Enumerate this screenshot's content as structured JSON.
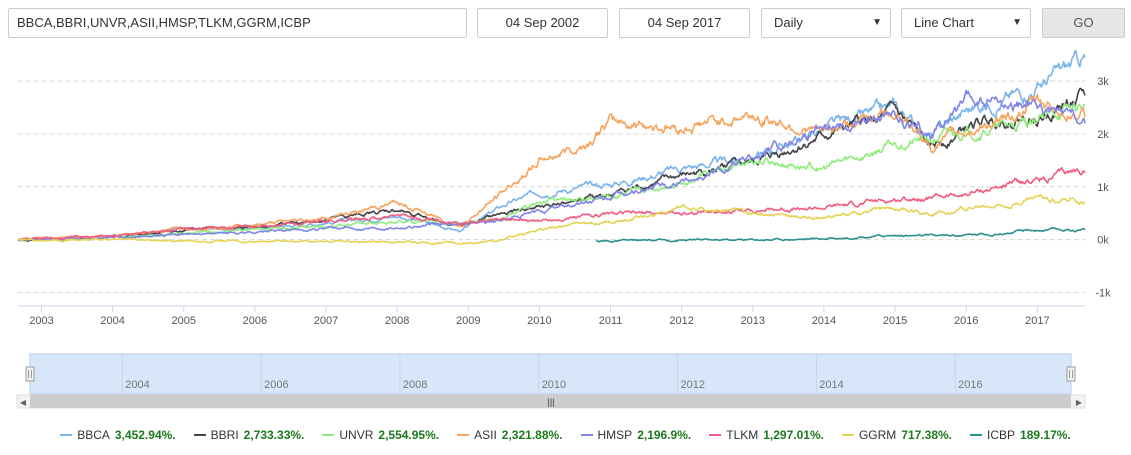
{
  "toolbar": {
    "symbols": "BBCA,BBRI,UNVR,ASII,HMSP,TLKM,GGRM,ICBP",
    "start_date": "04 Sep 2002",
    "end_date": "04 Sep 2017",
    "interval": "Daily",
    "chart_type": "Line Chart",
    "go_label": "GO"
  },
  "chart_data": {
    "type": "line",
    "x_type": "year",
    "xlim": [
      2002.67,
      2017.67
    ],
    "ylim": [
      -1200,
      3400
    ],
    "y_ticks": [
      -1000,
      0,
      1000,
      2000,
      3000
    ],
    "y_tick_labels": [
      "-1k",
      "0k",
      "1k",
      "2k",
      "3k"
    ],
    "x_ticks": [
      "2003",
      "2004",
      "2005",
      "2006",
      "2007",
      "2008",
      "2009",
      "2010",
      "2011",
      "2012",
      "2013",
      "2014",
      "2015",
      "2016",
      "2017"
    ],
    "grid": true,
    "legend_position": "bottom",
    "series": [
      {
        "name": "BBCA",
        "color": "#7cb5ec",
        "label_value": "3,452.94%.",
        "x": [
          2002.67,
          2004,
          2005,
          2006,
          2007,
          2008,
          2008.9,
          2009.5,
          2010,
          2011,
          2012,
          2013,
          2014,
          2015,
          2015.5,
          2016,
          2016.5,
          2017,
          2017.67
        ],
        "y": [
          0,
          50,
          200,
          220,
          320,
          450,
          160,
          650,
          900,
          1050,
          1350,
          1550,
          2100,
          2500,
          1950,
          2450,
          2650,
          2900,
          3450
        ]
      },
      {
        "name": "BBRI",
        "color": "#434348",
        "label_value": "2,733.33%.",
        "x": [
          2002.67,
          2004,
          2005,
          2006,
          2007,
          2008,
          2008.9,
          2009.5,
          2010,
          2011,
          2012,
          2013,
          2014,
          2015,
          2015.5,
          2016,
          2016.5,
          2017,
          2017.67
        ],
        "y": [
          0,
          40,
          190,
          220,
          380,
          560,
          250,
          500,
          620,
          850,
          1200,
          1450,
          1950,
          2400,
          1750,
          2100,
          2300,
          2300,
          2730
        ]
      },
      {
        "name": "UNVR",
        "color": "#90ed7d",
        "label_value": "2,554.95%.",
        "x": [
          2002.67,
          2004,
          2005,
          2006,
          2007,
          2008,
          2008.9,
          2009.5,
          2010,
          2011,
          2012,
          2013,
          2014,
          2015,
          2015.5,
          2016,
          2016.5,
          2017,
          2017.67
        ],
        "y": [
          0,
          30,
          120,
          200,
          250,
          330,
          330,
          400,
          700,
          800,
          1100,
          1500,
          1350,
          1800,
          1900,
          2050,
          2100,
          2300,
          2550
        ]
      },
      {
        "name": "ASII",
        "color": "#f7a35c",
        "label_value": "2,321.88%.",
        "x": [
          2002.67,
          2004,
          2005,
          2006,
          2007,
          2008,
          2008.9,
          2009.5,
          2010,
          2010.7,
          2011,
          2012,
          2013,
          2014,
          2015,
          2015.5,
          2016,
          2016.5,
          2017,
          2017.67
        ],
        "y": [
          0,
          60,
          220,
          280,
          400,
          700,
          250,
          900,
          1500,
          1850,
          2250,
          2100,
          2350,
          2000,
          2500,
          1750,
          2050,
          2250,
          2600,
          2320
        ]
      },
      {
        "name": "HMSP",
        "color": "#8085e9",
        "label_value": "2,196.9%.",
        "x": [
          2002.67,
          2004,
          2005,
          2006,
          2007,
          2008,
          2008.9,
          2009.5,
          2010,
          2011,
          2012,
          2013,
          2014,
          2015,
          2015.5,
          2016,
          2016.5,
          2017,
          2017.67
        ],
        "y": [
          0,
          30,
          100,
          150,
          200,
          250,
          300,
          380,
          520,
          800,
          1100,
          1500,
          2200,
          2300,
          2000,
          2600,
          2550,
          2500,
          2200
        ]
      },
      {
        "name": "TLKM",
        "color": "#f15c80",
        "label_value": "1,297.01%.",
        "x": [
          2002.67,
          2004,
          2005,
          2006,
          2007,
          2008,
          2008.9,
          2009.5,
          2010,
          2011,
          2012,
          2013,
          2014,
          2015,
          2015.5,
          2016,
          2016.5,
          2017,
          2017.67
        ],
        "y": [
          0,
          70,
          200,
          240,
          350,
          450,
          300,
          400,
          350,
          480,
          500,
          550,
          600,
          750,
          800,
          850,
          1000,
          1150,
          1300
        ]
      },
      {
        "name": "GGRM",
        "color": "#e4d354",
        "label_value": "717.38%.",
        "x": [
          2002.67,
          2004,
          2005,
          2006,
          2007,
          2008,
          2008.9,
          2009.5,
          2010,
          2011,
          2012,
          2013,
          2014,
          2015,
          2015.5,
          2016,
          2016.5,
          2017,
          2017.67
        ],
        "y": [
          0,
          -10,
          -20,
          -40,
          -20,
          -50,
          -60,
          0,
          200,
          350,
          600,
          500,
          400,
          600,
          500,
          600,
          650,
          800,
          720
        ]
      },
      {
        "name": "ICBP",
        "color": "#2b908f",
        "label_value": "189.17%.",
        "x": [
          2010.8,
          2011,
          2012,
          2013,
          2014,
          2015,
          2015.5,
          2016,
          2016.5,
          2017,
          2017.67
        ],
        "y": [
          -20,
          -30,
          -10,
          0,
          20,
          80,
          70,
          90,
          120,
          180,
          190
        ]
      }
    ]
  },
  "navigator": {
    "x_ticks": [
      "2004",
      "2006",
      "2008",
      "2010",
      "2012",
      "2014",
      "2016"
    ]
  }
}
